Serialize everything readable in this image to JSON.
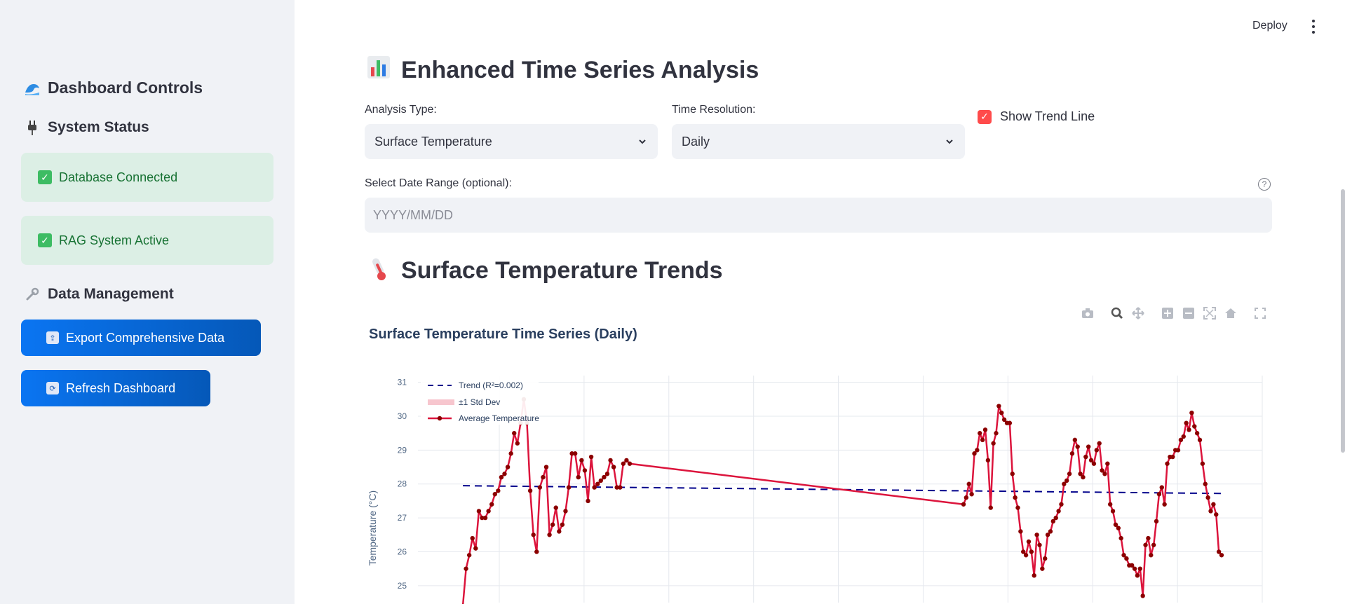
{
  "sidebar": {
    "title": "Dashboard Controls",
    "title_icon": "wave-icon",
    "system_status": {
      "heading": "System Status",
      "icon": "plug-icon"
    },
    "status_items": [
      {
        "label": "Database Connected",
        "icon": "check-icon"
      },
      {
        "label": "RAG System Active",
        "icon": "check-icon"
      }
    ],
    "data_management": {
      "heading": "Data Management",
      "icon": "wrench-icon"
    },
    "buttons": [
      {
        "label": "Export Comprehensive Data",
        "icon": "outbox-icon"
      },
      {
        "label": "Refresh Dashboard",
        "icon": "refresh-icon"
      }
    ]
  },
  "topbar": {
    "deploy_label": "Deploy",
    "menu_icon": "kebab-menu-icon"
  },
  "main": {
    "title": "Enhanced Time Series Analysis",
    "title_icon": "bar-chart-icon",
    "analysis_type": {
      "label": "Analysis Type:",
      "value": "Surface Temperature"
    },
    "time_resolution": {
      "label": "Time Resolution:",
      "value": "Daily"
    },
    "trend_checkbox": {
      "label": "Show Trend Line",
      "checked": true
    },
    "date_range": {
      "label": "Select Date Range (optional):",
      "placeholder": "YYYY/MM/DD"
    },
    "section_title": "Surface Temperature Trends",
    "section_icon": "thermometer-icon"
  },
  "colors": {
    "accent": "#ff4b4b",
    "button_blue": "#0a75f2",
    "status_green_bg": "#dcefe5",
    "status_green_text": "#177233",
    "series_line": "#dc143c",
    "series_marker": "#8b0000",
    "trend_line": "#00008b",
    "std_band": "#f7c6ce"
  },
  "chart_data": {
    "type": "line",
    "title": "Surface Temperature Time Series (Daily)",
    "xlabel": "",
    "ylabel": "Temperature (°C)",
    "ylim": [
      24.5,
      31.2
    ],
    "yticks": [
      25,
      26,
      27,
      28,
      29,
      30,
      31
    ],
    "grid": true,
    "legend_placement": "top-left",
    "legend": [
      {
        "name": "Trend (R²=0.002)",
        "style": "dashed"
      },
      {
        "name": "±1 Std Dev",
        "style": "band"
      },
      {
        "name": "Average Temperature",
        "style": "line+markers"
      }
    ],
    "trend": {
      "y_start": 27.95,
      "y_end": 27.72
    },
    "segments": [
      [
        24.4,
        25.5,
        25.9,
        26.4,
        26.1,
        27.2,
        27.0,
        27.0,
        27.2,
        27.4,
        27.7,
        27.8,
        28.2,
        28.3,
        28.5,
        28.9,
        29.5,
        29.2,
        29.8,
        30.5,
        29.8,
        27.8,
        26.5,
        26.0,
        27.9,
        28.2,
        28.5,
        26.5,
        26.8,
        27.3,
        26.6,
        26.8,
        27.2,
        27.9,
        28.9,
        28.9,
        28.2,
        28.7,
        28.4,
        27.5,
        28.8,
        27.9,
        28.0,
        28.1,
        28.2,
        28.3,
        28.7,
        28.5,
        27.9,
        27.9,
        28.6,
        28.7,
        28.6
      ],
      [
        27.4,
        27.6,
        28.0,
        27.7,
        28.9,
        29.0,
        29.5,
        29.3,
        29.6,
        28.7,
        27.3,
        29.2,
        29.5,
        30.3,
        30.1,
        29.9,
        29.8,
        29.8,
        28.3,
        27.6,
        27.3,
        26.6,
        26.0,
        25.9,
        26.3,
        26.0,
        25.3,
        26.5,
        26.2,
        25.5,
        25.8,
        26.5,
        26.6,
        26.9,
        27.0,
        27.2,
        27.4,
        28.0,
        28.1,
        28.3,
        28.9,
        29.3,
        29.1,
        28.3,
        28.2,
        28.8,
        29.1,
        28.7,
        28.6,
        29.0,
        29.2,
        28.4,
        28.3,
        28.6,
        27.4,
        27.2,
        26.8,
        26.7,
        26.4,
        25.9,
        25.8,
        25.6,
        25.6,
        25.5,
        25.3,
        25.5,
        24.7,
        26.2,
        26.4,
        25.9,
        26.2,
        26.9,
        27.7,
        27.9,
        27.4,
        28.6,
        28.8,
        28.8,
        29.0,
        29.0,
        29.3,
        29.4,
        29.8,
        29.6,
        30.1,
        29.7,
        29.5,
        29.3,
        28.6,
        28.0,
        27.6,
        27.2,
        27.4,
        27.1,
        26.0,
        25.9
      ]
    ]
  }
}
